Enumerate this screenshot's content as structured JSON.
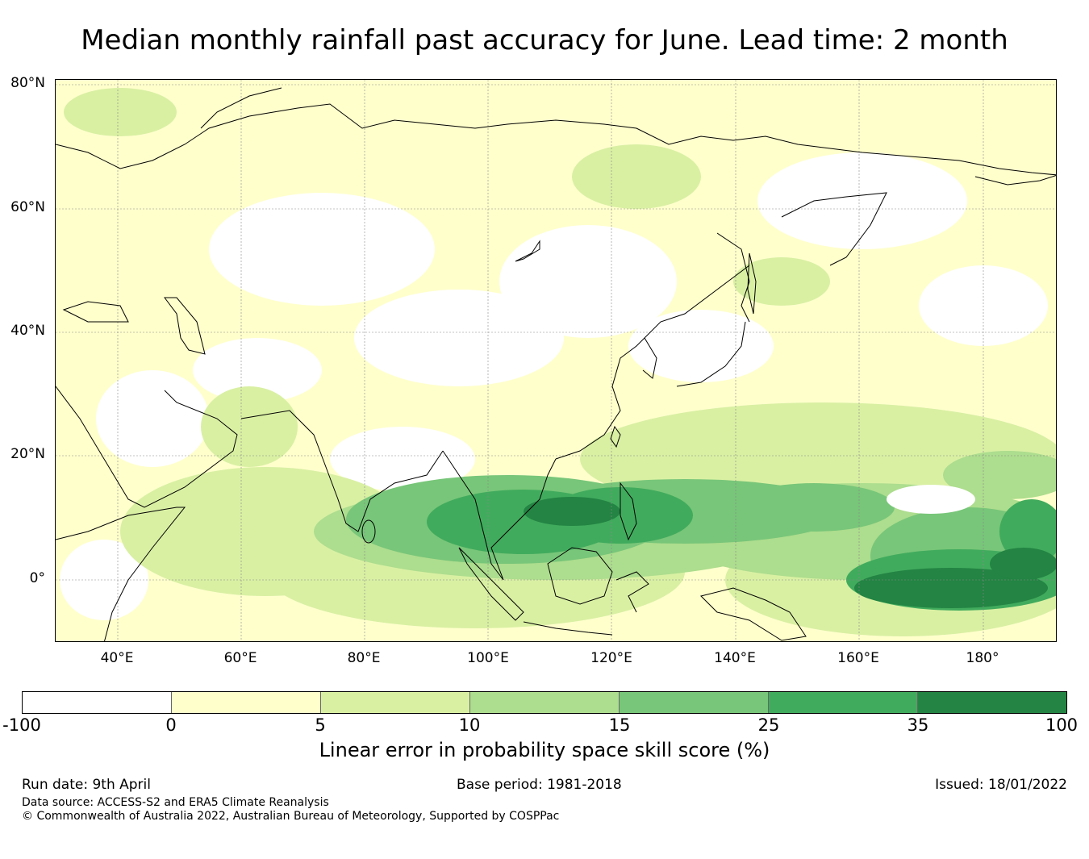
{
  "title": "Median monthly rainfall past accuracy for June. Lead time: 2 month",
  "map": {
    "lat_labels": [
      "80°N",
      "60°N",
      "40°N",
      "20°N",
      "0°"
    ],
    "lon_labels": [
      "40°E",
      "60°E",
      "80°E",
      "100°E",
      "120°E",
      "140°E",
      "160°E",
      "180°"
    ]
  },
  "colorbar": {
    "label": "Linear error in probability space skill score (%)",
    "ticks": [
      "-100",
      "0",
      "5",
      "10",
      "15",
      "25",
      "35",
      "100"
    ],
    "bins": [
      {
        "range": "-100 to 0",
        "color": "#ffffff"
      },
      {
        "range": "0 to 5",
        "color": "#ffffcc"
      },
      {
        "range": "5 to 10",
        "color": "#d9f0a3"
      },
      {
        "range": "10 to 15",
        "color": "#addd8e"
      },
      {
        "range": "15 to 25",
        "color": "#78c679"
      },
      {
        "range": "25 to 35",
        "color": "#41ab5d"
      },
      {
        "range": "35 to 100",
        "color": "#238443"
      }
    ]
  },
  "footer": {
    "run_date": "Run date: 9th April",
    "base_period": "Base period: 1981-2018",
    "issued": "Issued: 18/01/2022",
    "source": "Data source: ACCESS-S2 and ERA5 Climate Reanalysis",
    "copyright": "© Commonwealth of Australia 2022, Australian Bureau of Meteorology, Supported by COSPPac"
  }
}
